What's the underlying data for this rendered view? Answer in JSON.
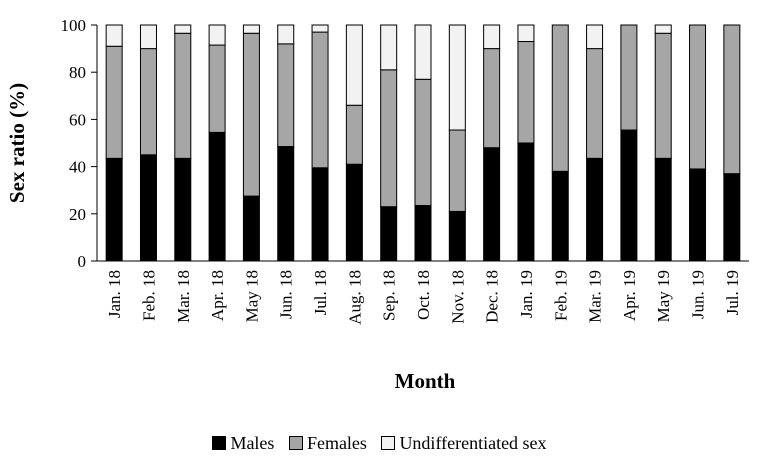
{
  "chart_data": {
    "type": "bar",
    "stacked": true,
    "categories": [
      "Jan. 18",
      "Feb. 18",
      "Mar. 18",
      "Apr. 18",
      "May 18",
      "Jun. 18",
      "Jul. 18",
      "Aug. 18",
      "Sep. 18",
      "Oct. 18",
      "Nov. 18",
      "Dec. 18",
      "Jan. 19",
      "Feb. 19",
      "Mar. 19",
      "Apr. 19",
      "May 19",
      "Jun. 19",
      "Jul. 19"
    ],
    "series": [
      {
        "name": "Males",
        "color": "#000000",
        "values": [
          43.5,
          45,
          43.5,
          54.5,
          27.5,
          48.5,
          39.5,
          41,
          23,
          23.5,
          21,
          48,
          50,
          38,
          43.5,
          55.5,
          43.5,
          39,
          37
        ]
      },
      {
        "name": "Females",
        "color": "#a6a6a6",
        "values": [
          47.5,
          45,
          53,
          37,
          69,
          43.5,
          57.5,
          25,
          58,
          53.5,
          34.5,
          42,
          43,
          62,
          46.5,
          44.5,
          53,
          61,
          63
        ]
      },
      {
        "name": "Undifferentiated sex",
        "color": "#f2f2f2",
        "values": [
          9,
          10,
          3.5,
          8.5,
          3.5,
          8,
          3,
          34,
          19,
          23,
          44.5,
          10,
          7,
          0,
          10,
          0,
          3.5,
          0,
          0
        ]
      }
    ],
    "xlabel": "Month",
    "ylabel": "Sex ratio (%)",
    "ylim": [
      0,
      100
    ],
    "yticks": [
      0,
      20,
      40,
      60,
      80,
      100
    ],
    "grid": false,
    "legend_position": "bottom"
  }
}
